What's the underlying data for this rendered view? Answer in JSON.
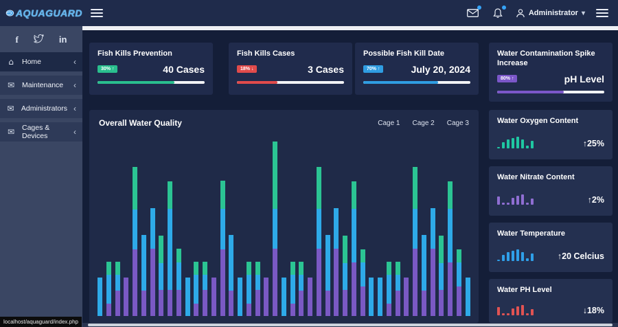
{
  "brand": {
    "name": "AQUAGUARD"
  },
  "topbar": {
    "user_label": "Administrator",
    "icons": [
      "menu",
      "mail",
      "bell",
      "user",
      "chevron-down",
      "menu"
    ]
  },
  "sidebar": {
    "social": [
      "facebook",
      "twitter",
      "linkedin"
    ],
    "items": [
      {
        "label": "Home",
        "active": true
      },
      {
        "label": "Maintenance",
        "active": false
      },
      {
        "label": "Administrators",
        "active": false
      },
      {
        "label": "Cages & Devices",
        "active": false
      }
    ]
  },
  "stat_cards": [
    {
      "title": "Fish Kills Prevention",
      "badge": "30% ↑",
      "value": "40 Cases",
      "progress_pct": 72,
      "color": "#2abf8e"
    },
    {
      "title": "Fish Kills Cases",
      "badge": "18% ↓",
      "value": "3 Cases",
      "progress_pct": 38,
      "color": "#e14b4b"
    },
    {
      "title": "Possible Fish Kill Date",
      "badge": "70% ↑",
      "value": "July 20, 2024",
      "progress_pct": 70,
      "color": "#2f9de2"
    },
    {
      "title": "Water Contamination Spike Increase",
      "badge": "80% ↑",
      "value": "pH Level",
      "progress_pct": 62,
      "color": "#7b57c9"
    }
  ],
  "right_cards": [
    {
      "title": "Water Oxygen Content",
      "delta": "↑25%",
      "color": "#1fc7a2",
      "bars": [
        2,
        9,
        13,
        15,
        17,
        13,
        4,
        11
      ]
    },
    {
      "title": "Water Nitrate Content",
      "delta": "↑2%",
      "color": "#8f6ed2",
      "bars": [
        12,
        3,
        3,
        10,
        13,
        15,
        3,
        9
      ]
    },
    {
      "title": "Water Temperature",
      "delta": "↑20 Celcius",
      "color": "#2f9fe8",
      "bars": [
        2,
        9,
        13,
        15,
        17,
        13,
        4,
        11
      ]
    },
    {
      "title": "Water PH Level",
      "delta": "↓18%",
      "color": "#e05353",
      "bars": [
        12,
        3,
        3,
        10,
        13,
        15,
        3,
        9
      ]
    }
  ],
  "chart": {
    "title": "Overall Water Quality",
    "legend": [
      "Cage 1",
      "Cage 2",
      "Cage 3"
    ]
  },
  "chart_data": {
    "type": "bar",
    "stacked": true,
    "title": "Overall Water Quality",
    "xlabel": "",
    "ylabel": "",
    "ylim": [
      0,
      260
    ],
    "note": "values are pixel-estimated relative units; no axis ticks are shown in the UI",
    "categories": [
      1,
      2,
      3,
      4,
      5,
      6,
      7,
      8,
      9,
      10,
      11,
      12,
      13,
      14,
      15,
      16,
      17,
      18,
      19,
      20,
      21,
      22,
      23,
      24,
      25,
      26,
      27,
      28,
      29,
      30,
      31,
      32,
      33,
      34,
      35,
      36,
      37,
      38,
      39,
      40,
      41,
      42,
      43
    ],
    "series": [
      {
        "name": "Cage 1",
        "color": "#7a59c4",
        "values": [
          0,
          18,
          37,
          56,
          97,
          37,
          98,
          38,
          38,
          38,
          0,
          18,
          38,
          56,
          97,
          37,
          0,
          18,
          38,
          56,
          98,
          0,
          18,
          37,
          56,
          98,
          37,
          98,
          38,
          78,
          43,
          0,
          0,
          18,
          37,
          56,
          98,
          37,
          98,
          38,
          78,
          43,
          0
        ]
      },
      {
        "name": "Cage 2",
        "color": "#2eaae8",
        "values": [
          56,
          42,
          23,
          0,
          58,
          81,
          59,
          39,
          118,
          40,
          56,
          42,
          22,
          0,
          59,
          81,
          56,
          42,
          22,
          0,
          58,
          56,
          42,
          23,
          0,
          58,
          81,
          59,
          39,
          78,
          35,
          56,
          56,
          42,
          23,
          0,
          58,
          81,
          59,
          39,
          78,
          35,
          56
        ]
      },
      {
        "name": "Cage 3",
        "color": "#2bc493",
        "values": [
          0,
          19,
          19,
          0,
          62,
          0,
          0,
          40,
          40,
          20,
          0,
          19,
          19,
          0,
          41,
          0,
          0,
          19,
          19,
          0,
          98,
          0,
          19,
          19,
          0,
          61,
          0,
          0,
          40,
          40,
          19,
          0,
          0,
          19,
          19,
          0,
          61,
          0,
          0,
          40,
          40,
          19,
          0
        ]
      }
    ],
    "legend_position": "top-right"
  },
  "status_bar": {
    "text": "localhost/aquaguard/index.php"
  }
}
